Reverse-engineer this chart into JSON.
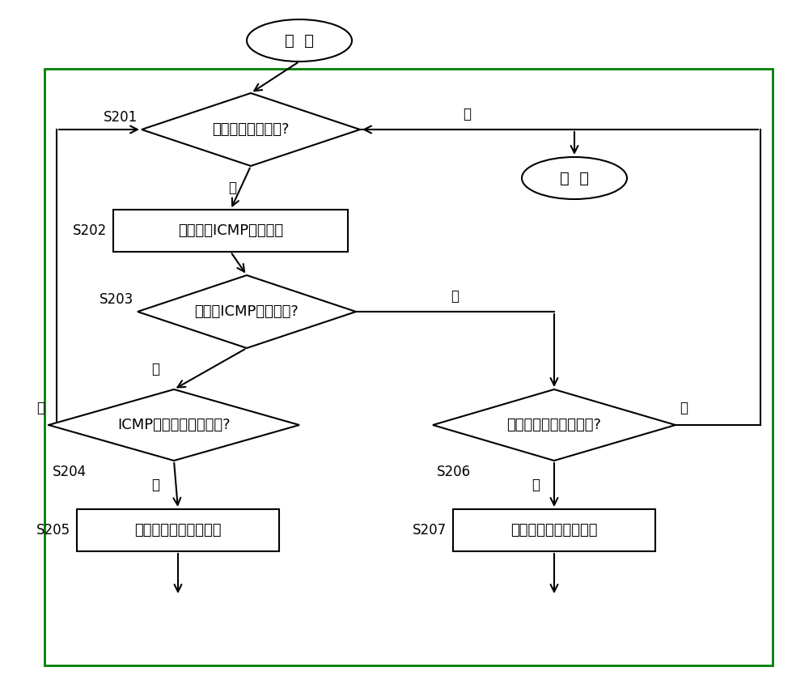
{
  "bg_color": "#ffffff",
  "line_color": "#000000",
  "border_color": "#008000",
  "start_text": "开  始",
  "end_text": "结  束",
  "s201_text": "退出网络监控流程?",
  "s202_text": "定时发送ICMP请求报文",
  "s203_text": "接收到ICMP应答报文?",
  "s204_text": "ICMP应答报文接收正常?",
  "s205_text": "发出网络故障告警通知",
  "s206_text": "前一时刻网络是否正常?",
  "s207_text": "发出网络故障恢复通知",
  "yes_text": "是",
  "no_text": "否",
  "labels": [
    "S201",
    "S202",
    "S203",
    "S204",
    "S205",
    "S206",
    "S207"
  ]
}
